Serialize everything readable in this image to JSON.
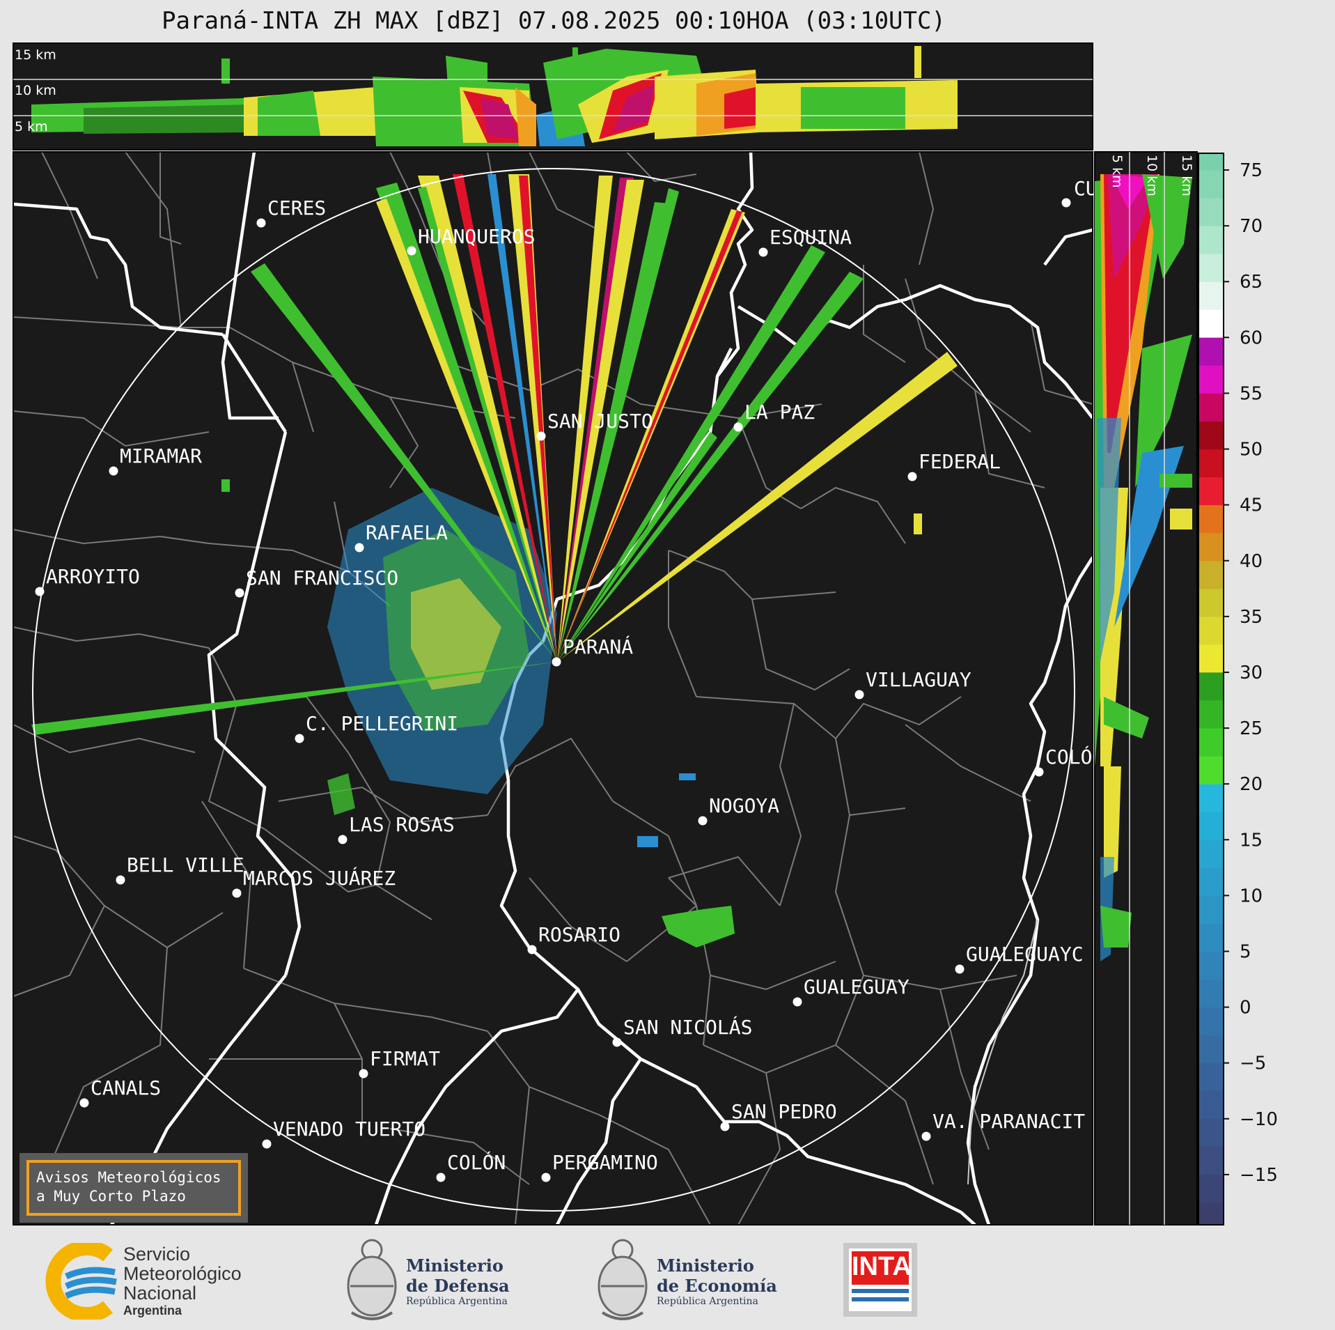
{
  "title": "Paraná-INTA ZH MAX [dBZ] 07.08.2025 00:10HOA (03:10UTC)",
  "top_panel": {
    "height_labels": [
      "15 km",
      "10 km",
      "5 km"
    ]
  },
  "side_panel": {
    "height_labels": [
      "5 km",
      "10 km",
      "15 km"
    ]
  },
  "colorbar": {
    "ticks": [
      "75",
      "70",
      "65",
      "60",
      "55",
      "50",
      "45",
      "40",
      "35",
      "30",
      "25",
      "20",
      "15",
      "10",
      "5",
      "0",
      "−5",
      "−10",
      "−15"
    ],
    "values": [
      75,
      70,
      65,
      60,
      55,
      50,
      45,
      40,
      35,
      30,
      25,
      20,
      15,
      10,
      5,
      0,
      -5,
      -10,
      -15
    ]
  },
  "cities": [
    {
      "name": "CERES"
    },
    {
      "name": "HUANQUEROS"
    },
    {
      "name": "ESQUINA"
    },
    {
      "name": "CU"
    },
    {
      "name": "SAN JUSTO"
    },
    {
      "name": "LA PAZ"
    },
    {
      "name": "MIRAMAR"
    },
    {
      "name": "FEDERAL"
    },
    {
      "name": "RAFAELA"
    },
    {
      "name": "ARROYITO"
    },
    {
      "name": "SAN FRANCISCO"
    },
    {
      "name": "PARANÁ"
    },
    {
      "name": "VILLAGUAY"
    },
    {
      "name": "C. PELLEGRINI"
    },
    {
      "name": "COLÓ"
    },
    {
      "name": "NOGOYA"
    },
    {
      "name": "LAS ROSAS"
    },
    {
      "name": "BELL VILLE"
    },
    {
      "name": "MARCOS JUÁREZ"
    },
    {
      "name": "ROSARIO"
    },
    {
      "name": "GUALEGUAYC"
    },
    {
      "name": "GUALEGUAY"
    },
    {
      "name": "SAN NICOLÁS"
    },
    {
      "name": "FIRMAT"
    },
    {
      "name": "CANALS"
    },
    {
      "name": "SAN PEDRO"
    },
    {
      "name": "VENADO TUERTO"
    },
    {
      "name": "VA. PARANACIT"
    },
    {
      "name": "COLÓN"
    },
    {
      "name": "PERGAMINO"
    }
  ],
  "notice": {
    "line1": "Avisos Meteorológicos",
    "line2": "a Muy Corto Plazo"
  },
  "logos": {
    "smn": {
      "line1": "Servicio",
      "line2": "Meteorológico",
      "line3": "Nacional",
      "line4": "Argentina"
    },
    "defensa": {
      "line1": "Ministerio",
      "line2": "de Defensa",
      "line3": "República Argentina"
    },
    "economia": {
      "line1": "Ministerio",
      "line2": "de Economía",
      "line3": "República Argentina"
    },
    "inta": {
      "text": "INTA"
    }
  },
  "colors": {
    "background": "#1a1a1a",
    "accent_notice": "#f0a020",
    "smn_blue": "#2a8fd0",
    "smn_yellow": "#f5b400",
    "inta_red": "#e31d1a"
  }
}
